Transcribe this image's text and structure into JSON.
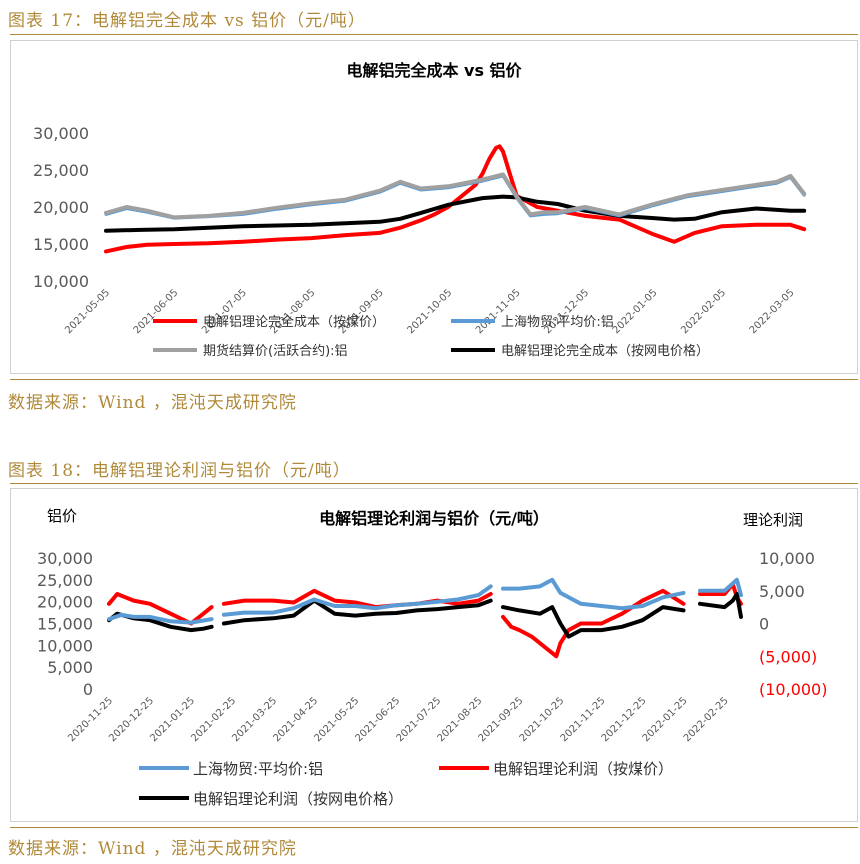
{
  "figure17": {
    "heading": "图表 17：电解铝完全成本 vs 铝价（元/吨）",
    "source": "数据来源：Wind ，混沌天成研究院"
  },
  "figure18": {
    "heading": "图表 18：电解铝理论利润与铝价（元/吨）",
    "source": "数据来源：Wind ，混沌天成研究院"
  },
  "colors": {
    "red": "#ff0000",
    "blue": "#5b9bd5",
    "gray": "#a0a0a0",
    "black": "#000000",
    "brown": "#b08a3a"
  },
  "chart_data": [
    {
      "type": "line",
      "title": "电解铝完全成本 vs 铝价",
      "ylim": [
        10000,
        30000
      ],
      "y_ticks": [
        "10,000",
        "15,000",
        "20,000",
        "25,000",
        "30,000"
      ],
      "x_labels": [
        "2021-05-05",
        "2021-06-05",
        "2021-07-05",
        "2021-08-05",
        "2021-09-05",
        "2021-10-05",
        "2021-11-05",
        "2021-12-05",
        "2022-01-05",
        "2022-02-05",
        "2022-03-05"
      ],
      "x_range": [
        0,
        10.3
      ],
      "grid": false,
      "legend_position": "bottom",
      "series": [
        {
          "name": "电解铝理论完全成本（按煤价）",
          "color": "#ff0000",
          "width": 4,
          "x": [
            0,
            0.3,
            0.6,
            1,
            1.5,
            2,
            2.5,
            3,
            3.5,
            4,
            4.3,
            4.6,
            4.8,
            5,
            5.2,
            5.4,
            5.5,
            5.6,
            5.7,
            5.75,
            5.8,
            5.9,
            6,
            6.3,
            6.6,
            7,
            7.5,
            8,
            8.3,
            8.6,
            9,
            9.5,
            10,
            10.2
          ],
          "y": [
            14000,
            14600,
            14900,
            15000,
            15100,
            15300,
            15600,
            15800,
            16200,
            16500,
            17200,
            18200,
            19000,
            20000,
            21500,
            23000,
            24500,
            26500,
            28000,
            28200,
            27500,
            24500,
            21500,
            20000,
            19500,
            18800,
            18300,
            16300,
            15300,
            16500,
            17400,
            17600,
            17600,
            17000
          ]
        },
        {
          "name": "上海物贸:平均价:铝",
          "color": "#5b9bd5",
          "width": 3,
          "x": [
            0,
            0.3,
            0.6,
            1,
            1.5,
            2,
            2.5,
            3,
            3.5,
            4,
            4.3,
            4.6,
            5,
            5.5,
            5.8,
            6,
            6.2,
            6.4,
            6.6,
            7,
            7.5,
            8,
            8.5,
            9,
            9.5,
            9.8,
            10,
            10.2
          ],
          "y": [
            19000,
            19800,
            19300,
            18500,
            18700,
            19000,
            19700,
            20300,
            20800,
            22000,
            23200,
            22300,
            22600,
            23500,
            24200,
            21200,
            18800,
            19000,
            19100,
            19800,
            18800,
            20200,
            21400,
            22100,
            22800,
            23200,
            24000,
            21600
          ]
        },
        {
          "name": "期货结算价(活跃合约):铝",
          "color": "#a0a0a0",
          "width": 4,
          "x": [
            0,
            0.3,
            0.6,
            1,
            1.5,
            2,
            2.5,
            3,
            3.5,
            4,
            4.3,
            4.6,
            5,
            5.5,
            5.8,
            6,
            6.2,
            6.4,
            6.6,
            7,
            7.5,
            8,
            8.5,
            9,
            9.5,
            9.8,
            10,
            10.2
          ],
          "y": [
            19200,
            20000,
            19500,
            18600,
            18800,
            19200,
            19900,
            20500,
            21000,
            22200,
            23400,
            22500,
            22800,
            23700,
            24400,
            21400,
            19000,
            19300,
            19300,
            20000,
            19000,
            20400,
            21600,
            22300,
            23000,
            23400,
            24200,
            21800
          ]
        },
        {
          "name": "电解铝理论完全成本（按网电价格）",
          "color": "#000000",
          "width": 4,
          "x": [
            0,
            0.5,
            1,
            1.5,
            2,
            2.5,
            3,
            3.5,
            4,
            4.3,
            4.6,
            5,
            5.5,
            5.8,
            6,
            6.3,
            6.6,
            7,
            7.5,
            8,
            8.3,
            8.6,
            9,
            9.5,
            10,
            10.2
          ],
          "y": [
            16800,
            16900,
            17000,
            17200,
            17400,
            17500,
            17600,
            17800,
            18000,
            18400,
            19200,
            20300,
            21200,
            21400,
            21300,
            20700,
            20400,
            19500,
            18800,
            18500,
            18300,
            18400,
            19300,
            19800,
            19500,
            19500
          ]
        }
      ]
    },
    {
      "type": "line",
      "title": "电解铝理论利润与铝价（元/吨）",
      "y_left_label": "铝价",
      "y_right_label": "理论利润",
      "ylim_left": [
        0,
        30000
      ],
      "ylim_right": [
        -10000,
        10000
      ],
      "y_left_ticks": [
        "0",
        "5,000",
        "10,000",
        "15,000",
        "20,000",
        "25,000",
        "30,000"
      ],
      "y_right_ticks": [
        "(10,000)",
        "(5,000)",
        "0",
        "5,000",
        "10,000"
      ],
      "x_labels": [
        "2020-11-25",
        "2020-12-25",
        "2021-01-25",
        "2021-02-25",
        "2021-03-25",
        "2021-04-25",
        "2021-05-25",
        "2021-06-25",
        "2021-07-25",
        "2021-08-25",
        "2021-09-25",
        "2021-10-25",
        "2021-11-25",
        "2021-12-25",
        "2022-01-25",
        "2022-02-25"
      ],
      "x_range": [
        0,
        15.4
      ],
      "grid": false,
      "legend_position": "bottom",
      "series": [
        {
          "name": "上海物贸:平均价:铝",
          "axis": "left",
          "color": "#5b9bd5",
          "width": 4,
          "segments": [
            {
              "x": [
                0,
                0.3,
                0.6,
                1,
                1.5,
                2,
                2.5
              ],
              "y": [
                16000,
                17000,
                16500,
                16500,
                15500,
                15200,
                16000
              ]
            },
            {
              "x": [
                2.8,
                3.3,
                4,
                4.5,
                5,
                5.5,
                6,
                6.5,
                7,
                7.5,
                8,
                8.5,
                9,
                9.3
              ],
              "y": [
                17000,
                17500,
                17500,
                18500,
                20500,
                19000,
                19000,
                18500,
                19200,
                19500,
                20000,
                20500,
                21500,
                23500
              ]
            },
            {
              "x": [
                9.6,
                10,
                10.5,
                10.8,
                11,
                11.5,
                12,
                12.5,
                13,
                13.5,
                14
              ],
              "y": [
                23000,
                23000,
                23500,
                25000,
                22000,
                19500,
                19000,
                18500,
                19000,
                21000,
                22000
              ]
            },
            {
              "x": [
                14.4,
                15,
                15.3,
                15.4
              ],
              "y": [
                22500,
                22500,
                25000,
                21500
              ]
            }
          ]
        },
        {
          "name": "电解铝理论利润（按煤价）",
          "axis": "right",
          "color": "#ff0000",
          "width": 4,
          "segments": [
            {
              "x": [
                0,
                0.2,
                0.6,
                1,
                1.5,
                2,
                2.3,
                2.5
              ],
              "y": [
                3000,
                4500,
                3500,
                3000,
                1500,
                0,
                1500,
                2500
              ]
            },
            {
              "x": [
                2.8,
                3.3,
                4,
                4.5,
                5,
                5.5,
                6,
                6.5,
                7,
                7.5,
                8,
                8.5,
                9,
                9.3
              ],
              "y": [
                3000,
                3500,
                3500,
                3200,
                5000,
                3500,
                3200,
                2500,
                2800,
                3000,
                3500,
                3000,
                3500,
                4500
              ]
            },
            {
              "x": [
                9.6,
                9.8,
                10,
                10.3,
                10.6,
                10.9,
                11,
                11.2,
                11.5,
                12,
                12.5,
                13,
                13.5,
                14
              ],
              "y": [
                1000,
                -500,
                -1000,
                -2000,
                -3500,
                -5000,
                -3000,
                -1000,
                0,
                0,
                1500,
                3500,
                5000,
                3000
              ]
            },
            {
              "x": [
                14.4,
                15,
                15.2,
                15.3,
                15.4
              ],
              "y": [
                4500,
                4500,
                6000,
                4000,
                3000
              ]
            }
          ]
        },
        {
          "name": "电解铝理论利润（按网电价格）",
          "axis": "right",
          "color": "#000000",
          "width": 4,
          "segments": [
            {
              "x": [
                0,
                0.2,
                0.6,
                1,
                1.5,
                2,
                2.3,
                2.5
              ],
              "y": [
                500,
                1500,
                800,
                500,
                -500,
                -1000,
                -800,
                -500
              ]
            },
            {
              "x": [
                2.8,
                3.3,
                4,
                4.5,
                5,
                5.5,
                6,
                6.5,
                7,
                7.5,
                8,
                8.5,
                9,
                9.3
              ],
              "y": [
                0,
                500,
                800,
                1200,
                3500,
                1500,
                1200,
                1500,
                1600,
                2000,
                2200,
                2500,
                2800,
                3500
              ]
            },
            {
              "x": [
                9.6,
                10,
                10.5,
                10.8,
                11,
                11.2,
                11.5,
                12,
                12.5,
                13,
                13.5,
                14
              ],
              "y": [
                2500,
                2000,
                1500,
                2500,
                0,
                -2000,
                -1000,
                -1000,
                -500,
                500,
                2500,
                2000
              ]
            },
            {
              "x": [
                14.4,
                15,
                15.2,
                15.3,
                15.4
              ],
              "y": [
                3000,
                2500,
                3500,
                4500,
                1000
              ]
            }
          ]
        }
      ]
    }
  ]
}
